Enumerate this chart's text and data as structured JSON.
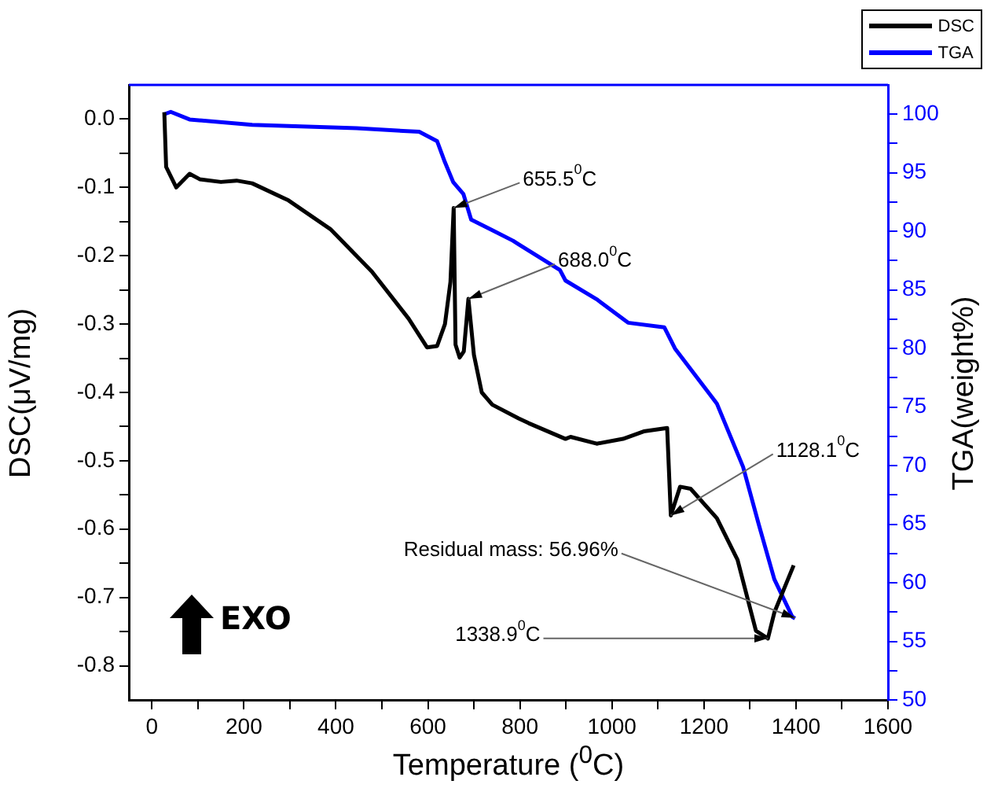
{
  "chart_data": {
    "type": "line",
    "xlabel": "Temperature ($^{0}$C)",
    "ylabel": "DSC(μV/mg)",
    "y2label": "TGA(weight%)",
    "series": [
      {
        "name": "DSC",
        "color": "#000000",
        "x": [
          27,
          31,
          53,
          82,
          104,
          150,
          184,
          218,
          297,
          388,
          478,
          558,
          598,
          620,
          637,
          649,
          656,
          660,
          669,
          678,
          688,
          700,
          717,
          740,
          797,
          819,
          899,
          910,
          967,
          1024,
          1069,
          1120,
          1128,
          1148,
          1171,
          1228,
          1273,
          1313,
          1339,
          1353,
          1395
        ],
        "values": [
          0.01,
          -0.07,
          -0.1,
          -0.08,
          -0.088,
          -0.092,
          -0.09,
          -0.094,
          -0.119,
          -0.161,
          -0.223,
          -0.292,
          -0.334,
          -0.332,
          -0.3,
          -0.238,
          -0.13,
          -0.33,
          -0.349,
          -0.34,
          -0.263,
          -0.345,
          -0.4,
          -0.418,
          -0.438,
          -0.445,
          -0.468,
          -0.465,
          -0.475,
          -0.468,
          -0.457,
          -0.452,
          -0.58,
          -0.538,
          -0.541,
          -0.584,
          -0.645,
          -0.749,
          -0.76,
          -0.722,
          -0.653
        ]
      },
      {
        "name": "TGA",
        "color": "#0000ff",
        "axis": "y2",
        "x": [
          27,
          41,
          82,
          218,
          445,
          581,
          620,
          637,
          655,
          677,
          694,
          740,
          785,
          797,
          887,
          899,
          967,
          1035,
          1114,
          1137,
          1228,
          1285,
          1319,
          1353,
          1392,
          1398
        ],
        "values": [
          100,
          100.2,
          99.55,
          99.1,
          98.8,
          98.5,
          97.7,
          95.9,
          94.2,
          93.2,
          91,
          90.1,
          89.2,
          88.9,
          86.7,
          85.8,
          84.2,
          82.2,
          81.8,
          80,
          75.3,
          69.9,
          65,
          60.3,
          57.1,
          56.96
        ]
      }
    ],
    "xlim": [
      -50,
      1600
    ],
    "xticks": [
      0,
      {
        "value": 100,
        "label": null
      },
      200,
      {
        "value": 300,
        "label": null
      },
      400,
      {
        "value": 500,
        "label": null
      },
      600,
      {
        "value": 700,
        "label": null
      },
      800,
      {
        "value": 900,
        "label": null
      },
      1000,
      {
        "value": 1100,
        "label": null
      },
      1200,
      {
        "value": 1300,
        "label": null
      },
      1400,
      {
        "value": 1500,
        "label": null
      },
      1600
    ],
    "ylim": [
      -0.85,
      0.05
    ],
    "yticks": [
      {
        "value": 0,
        "label": "0.0"
      },
      {
        "value": -0.05,
        "label": null
      },
      -0.1,
      {
        "value": -0.15,
        "label": null
      },
      -0.2,
      {
        "value": -0.25,
        "label": null
      },
      -0.3,
      {
        "value": -0.35,
        "label": null
      },
      -0.4,
      {
        "value": -0.45,
        "label": null
      },
      -0.5,
      {
        "value": -0.55,
        "label": null
      },
      -0.6,
      {
        "value": -0.65,
        "label": null
      },
      -0.7,
      {
        "value": -0.75,
        "label": null
      },
      -0.8
    ],
    "y2lim": [
      50,
      102.5
    ],
    "y2ticks": [
      50,
      {
        "value": 52.5,
        "label": null
      },
      55,
      {
        "value": 57.5,
        "label": null
      },
      60,
      {
        "value": 62.5,
        "label": null
      },
      65,
      {
        "value": 67.5,
        "label": null
      },
      70,
      {
        "value": 72.5,
        "label": null
      },
      75,
      {
        "value": 77.5,
        "label": null
      },
      80,
      {
        "value": 82.5,
        "label": null
      },
      85,
      {
        "value": 87.5,
        "label": null
      },
      90,
      {
        "value": 92.5,
        "label": null
      },
      95,
      {
        "value": 97.5,
        "label": null
      },
      100
    ],
    "annotations": [
      {
        "text": "655.5$^{0}$C",
        "x": 656,
        "y": -0.13
      },
      {
        "text": "688.0$^{0}$C",
        "x": 688,
        "y": -0.263
      },
      {
        "text": "1128.1$^{0}$C",
        "x": 1128,
        "y": -0.58
      },
      {
        "text": "Residual mass: 56.96%",
        "x": 1398,
        "y": -0.73
      },
      {
        "text": "1338.9$^{0}$C",
        "x": 1339,
        "y": -0.76
      },
      "EXO"
    ],
    "legend": "top right",
    "grid": false
  }
}
